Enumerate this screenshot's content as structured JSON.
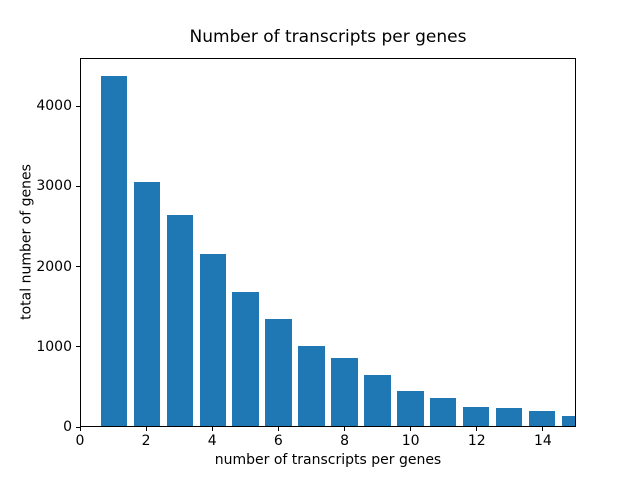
{
  "chart_data": {
    "type": "bar",
    "title": "Number of transcripts per genes",
    "xlabel": "number of transcripts per genes",
    "ylabel": "total number of genes",
    "x": [
      1,
      2,
      3,
      4,
      5,
      6,
      7,
      8,
      9,
      10,
      11,
      12,
      13,
      14,
      15
    ],
    "values": [
      4390,
      3060,
      2645,
      2160,
      1685,
      1340,
      1005,
      855,
      640,
      433,
      350,
      242,
      220,
      190,
      125
    ],
    "bar_width": 0.8,
    "bar_color": "#1f77b4",
    "xlim": [
      0,
      15
    ],
    "ylim": [
      0,
      4600
    ],
    "xticks": [
      0,
      2,
      4,
      6,
      8,
      10,
      12,
      14
    ],
    "yticks": [
      0,
      1000,
      2000,
      3000,
      4000
    ],
    "grid": false,
    "legend": null,
    "background_color": "#ffffff",
    "axis_color": "#000000"
  }
}
